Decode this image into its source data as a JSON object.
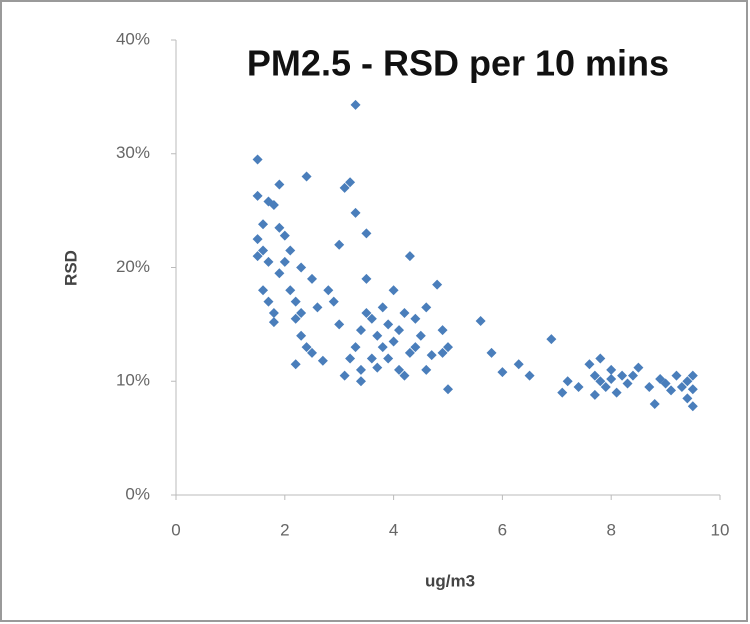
{
  "chart_data": {
    "type": "scatter",
    "title": "PM2.5 - RSD per 10 mins",
    "x_label": "ug/m3",
    "y_label": "RSD",
    "xlim": [
      0,
      10
    ],
    "xticks": [
      0,
      2,
      4,
      6,
      8,
      10
    ],
    "ylim": [
      0,
      40
    ],
    "yticks": [
      {
        "value": 0,
        "label": "0%"
      },
      {
        "value": 10,
        "label": "10%"
      },
      {
        "value": 20,
        "label": "20%"
      },
      {
        "value": 30,
        "label": "30%"
      },
      {
        "value": 40,
        "label": "40%"
      }
    ],
    "grid": false,
    "series": [
      {
        "color": "#4a7ebb",
        "x": [
          1.5,
          1.5,
          1.6,
          1.5,
          1.6,
          1.5,
          1.7,
          1.8,
          1.7,
          1.9,
          1.6,
          1.7,
          1.8,
          1.8,
          1.9,
          2.0,
          2.0,
          1.9,
          2.1,
          2.2,
          2.2,
          2.3,
          2.2,
          2.4,
          2.3,
          2.5,
          2.4,
          2.6,
          2.1,
          2.3,
          2.5,
          2.7,
          2.8,
          2.9,
          3.0,
          3.0,
          3.1,
          3.2,
          3.2,
          3.1,
          3.3,
          3.3,
          3.4,
          3.4,
          3.3,
          3.4,
          3.5,
          3.5,
          3.5,
          3.6,
          3.6,
          3.7,
          3.7,
          3.8,
          3.8,
          3.9,
          3.9,
          4.0,
          4.0,
          4.1,
          4.1,
          4.2,
          4.2,
          4.3,
          4.3,
          4.4,
          4.4,
          4.5,
          4.6,
          4.6,
          4.7,
          4.8,
          4.9,
          4.9,
          5.0,
          5.0,
          5.6,
          5.8,
          6.0,
          6.3,
          6.5,
          6.9,
          7.1,
          7.2,
          7.4,
          7.6,
          7.7,
          7.7,
          7.8,
          7.8,
          7.9,
          8.0,
          8.0,
          8.1,
          8.2,
          8.3,
          8.4,
          8.5,
          8.7,
          8.8,
          8.9,
          9.0,
          9.1,
          9.2,
          9.3,
          9.4,
          9.4,
          9.5,
          9.5,
          9.5
        ],
        "values": [
          29.5,
          26.3,
          23.8,
          22.5,
          21.5,
          21,
          20.5,
          25.5,
          25.8,
          27.3,
          18,
          17,
          16,
          15.2,
          19.5,
          20.5,
          22.8,
          23.5,
          18,
          17,
          15.5,
          14,
          11.5,
          28,
          20,
          19,
          13,
          16.5,
          21.5,
          16,
          12.5,
          11.8,
          18,
          17,
          15,
          22,
          27,
          27.5,
          12,
          10.5,
          34.3,
          24.8,
          11,
          10,
          13,
          14.5,
          23,
          19,
          16,
          15.5,
          12,
          11.2,
          14,
          13,
          16.5,
          12,
          15,
          18,
          13.5,
          11,
          14.5,
          16,
          10.5,
          12.5,
          21,
          13,
          15.5,
          14,
          11,
          16.5,
          12.3,
          18.5,
          14.5,
          12.5,
          9.3,
          13,
          15.3,
          12.5,
          10.8,
          11.5,
          10.5,
          13.7,
          9,
          10,
          9.5,
          11.5,
          10.5,
          8.8,
          12,
          10,
          9.5,
          11,
          10.2,
          9,
          10.5,
          9.8,
          10.5,
          11.2,
          9.5,
          8,
          10.2,
          9.8,
          9.2,
          10.5,
          9.5,
          10,
          8.5,
          10.5,
          7.8,
          9.3
        ]
      }
    ]
  }
}
